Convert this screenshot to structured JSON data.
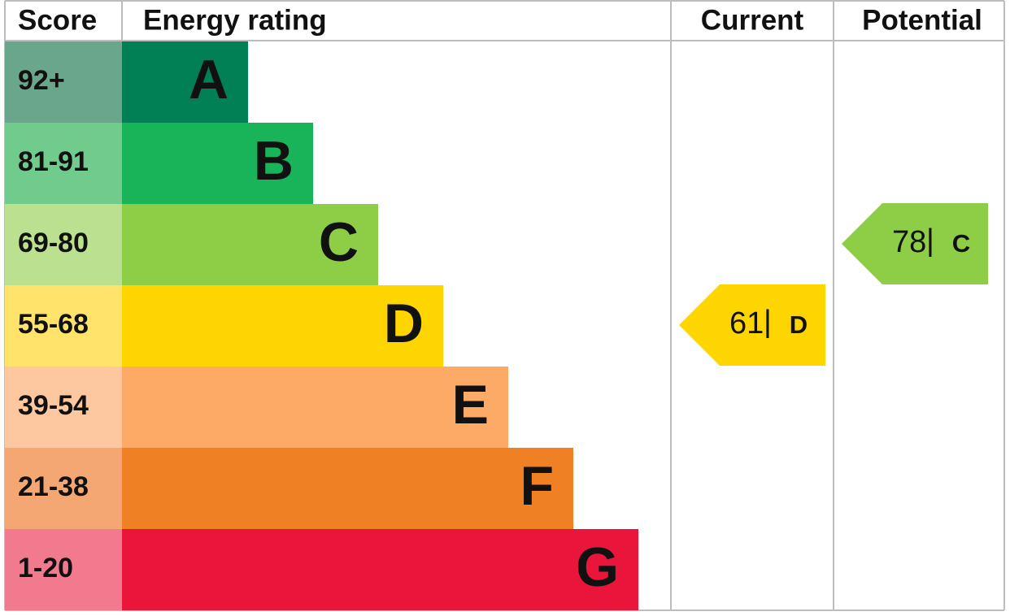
{
  "header": {
    "score": "Score",
    "rating": "Energy rating",
    "current": "Current",
    "potential": "Potential"
  },
  "bands": [
    {
      "score": "92+",
      "letter": "A",
      "color": "#008054",
      "score_color": "#6aa68b"
    },
    {
      "score": "81-91",
      "letter": "B",
      "color": "#19b459",
      "score_color": "#71cb8d"
    },
    {
      "score": "69-80",
      "letter": "C",
      "color": "#8dce46",
      "score_color": "#bbe08f"
    },
    {
      "score": "55-68",
      "letter": "D",
      "color": "#ffd500",
      "score_color": "#ffe36b"
    },
    {
      "score": "39-54",
      "letter": "E",
      "color": "#fcaa65",
      "score_color": "#fdc8a0"
    },
    {
      "score": "21-38",
      "letter": "F",
      "color": "#ef8023",
      "score_color": "#f4a772"
    },
    {
      "score": "1-20",
      "letter": "G",
      "color": "#e9153b",
      "score_color": "#f27a8f"
    }
  ],
  "current": {
    "value": 61,
    "separator": "|",
    "letter": "D"
  },
  "potential": {
    "value": 78,
    "separator": "|",
    "letter": "C"
  }
}
